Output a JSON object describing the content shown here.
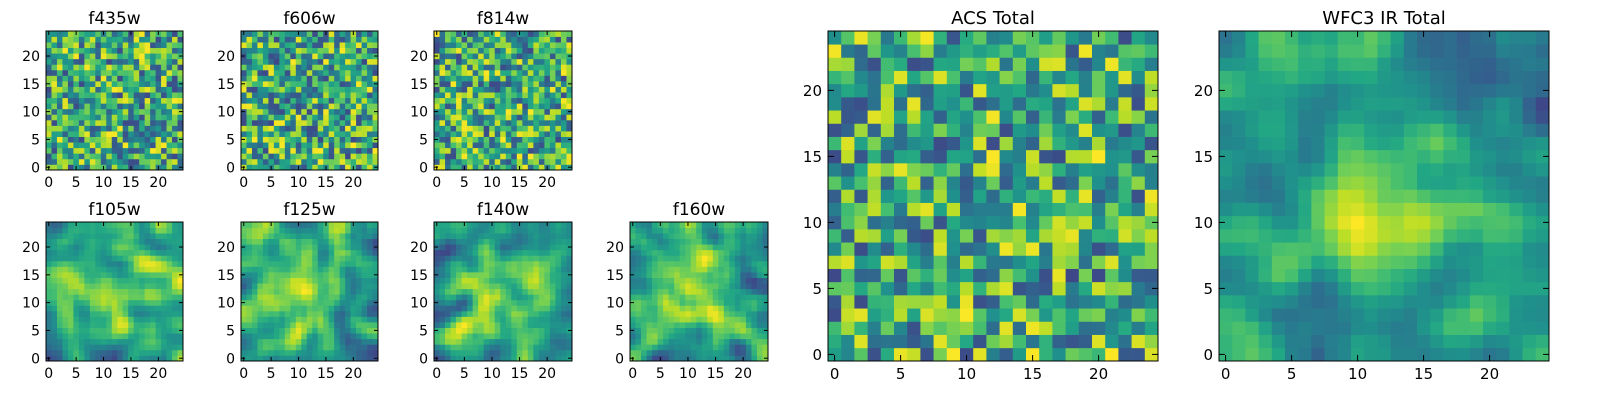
{
  "chart_data": [
    {
      "type": "heatmap",
      "title": "f435w",
      "x_ticks": [
        0,
        5,
        10,
        15,
        20
      ],
      "y_ticks": [
        0,
        5,
        10,
        15,
        20
      ],
      "xlim": [
        -0.5,
        24.5
      ],
      "ylim": [
        -0.5,
        24.5
      ],
      "grid_size": [
        25,
        25
      ],
      "colormap": "viridis",
      "texture": "noise"
    },
    {
      "type": "heatmap",
      "title": "f606w",
      "x_ticks": [
        0,
        5,
        10,
        15,
        20
      ],
      "y_ticks": [
        0,
        5,
        10,
        15,
        20
      ],
      "xlim": [
        -0.5,
        24.5
      ],
      "ylim": [
        -0.5,
        24.5
      ],
      "grid_size": [
        25,
        25
      ],
      "colormap": "viridis",
      "texture": "noise"
    },
    {
      "type": "heatmap",
      "title": "f814w",
      "x_ticks": [
        0,
        5,
        10,
        15,
        20
      ],
      "y_ticks": [
        0,
        5,
        10,
        15,
        20
      ],
      "xlim": [
        -0.5,
        24.5
      ],
      "ylim": [
        -0.5,
        24.5
      ],
      "grid_size": [
        25,
        25
      ],
      "colormap": "viridis",
      "texture": "noise"
    },
    {
      "type": "heatmap",
      "title": "f105w",
      "x_ticks": [
        0,
        5,
        10,
        15,
        20
      ],
      "y_ticks": [
        0,
        5,
        10,
        15,
        20
      ],
      "xlim": [
        -0.5,
        24.5
      ],
      "ylim": [
        -0.5,
        24.5
      ],
      "grid_size": [
        25,
        25
      ],
      "colormap": "viridis",
      "texture": "smooth"
    },
    {
      "type": "heatmap",
      "title": "f125w",
      "x_ticks": [
        0,
        5,
        10,
        15,
        20
      ],
      "y_ticks": [
        0,
        5,
        10,
        15,
        20
      ],
      "xlim": [
        -0.5,
        24.5
      ],
      "ylim": [
        -0.5,
        24.5
      ],
      "grid_size": [
        25,
        25
      ],
      "colormap": "viridis",
      "texture": "smooth"
    },
    {
      "type": "heatmap",
      "title": "f140w",
      "x_ticks": [
        0,
        5,
        10,
        15,
        20
      ],
      "y_ticks": [
        0,
        5,
        10,
        15,
        20
      ],
      "xlim": [
        -0.5,
        24.5
      ],
      "ylim": [
        -0.5,
        24.5
      ],
      "grid_size": [
        25,
        25
      ],
      "colormap": "viridis",
      "texture": "smooth"
    },
    {
      "type": "heatmap",
      "title": "f160w",
      "x_ticks": [
        0,
        5,
        10,
        15,
        20
      ],
      "y_ticks": [
        0,
        5,
        10,
        15,
        20
      ],
      "xlim": [
        -0.5,
        24.5
      ],
      "ylim": [
        -0.5,
        24.5
      ],
      "grid_size": [
        25,
        25
      ],
      "colormap": "viridis",
      "texture": "smooth"
    },
    {
      "type": "heatmap",
      "title": "ACS Total",
      "x_ticks": [
        0,
        5,
        10,
        15,
        20
      ],
      "y_ticks": [
        0,
        5,
        10,
        15,
        20
      ],
      "xlim": [
        -0.5,
        24.5
      ],
      "ylim": [
        -0.5,
        24.5
      ],
      "grid_size": [
        25,
        25
      ],
      "colormap": "viridis",
      "texture": "noise"
    },
    {
      "type": "heatmap",
      "title": "WFC3 IR Total",
      "x_ticks": [
        0,
        5,
        10,
        15,
        20
      ],
      "y_ticks": [
        0,
        5,
        10,
        15,
        20
      ],
      "xlim": [
        -0.5,
        24.5
      ],
      "ylim": [
        -0.5,
        24.5
      ],
      "grid_size": [
        25,
        25
      ],
      "colormap": "viridis",
      "texture": "smooth"
    }
  ]
}
